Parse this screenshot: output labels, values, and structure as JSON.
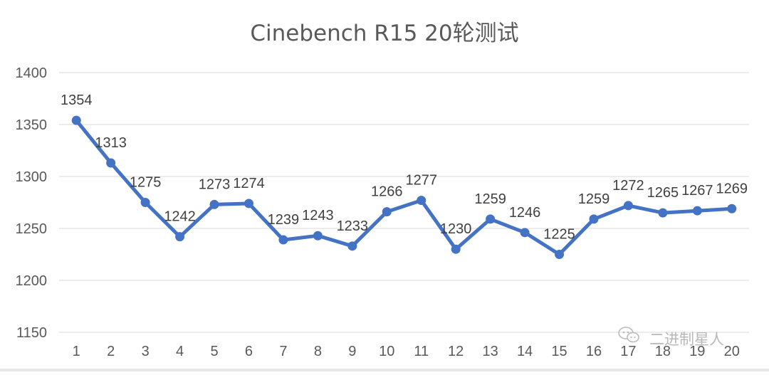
{
  "chart_data": {
    "type": "line",
    "title": "Cinebench R15 20轮测试",
    "xlabel": "",
    "ylabel": "",
    "categories": [
      "1",
      "2",
      "3",
      "4",
      "5",
      "6",
      "7",
      "8",
      "9",
      "10",
      "11",
      "12",
      "13",
      "14",
      "15",
      "16",
      "17",
      "18",
      "19",
      "20"
    ],
    "series": [
      {
        "values": [
          1354,
          1313,
          1275,
          1242,
          1273,
          1274,
          1239,
          1243,
          1233,
          1266,
          1277,
          1230,
          1259,
          1246,
          1225,
          1259,
          1272,
          1265,
          1267,
          1269
        ],
        "color": "#4472c4"
      }
    ],
    "ylim": [
      1150,
      1400
    ],
    "yticks": [
      1150,
      1200,
      1250,
      1300,
      1350,
      1400
    ],
    "grid": true,
    "legend": "none",
    "data_labels": true
  },
  "watermark": {
    "text": "二进制星人",
    "icon": "wechat-icon"
  }
}
